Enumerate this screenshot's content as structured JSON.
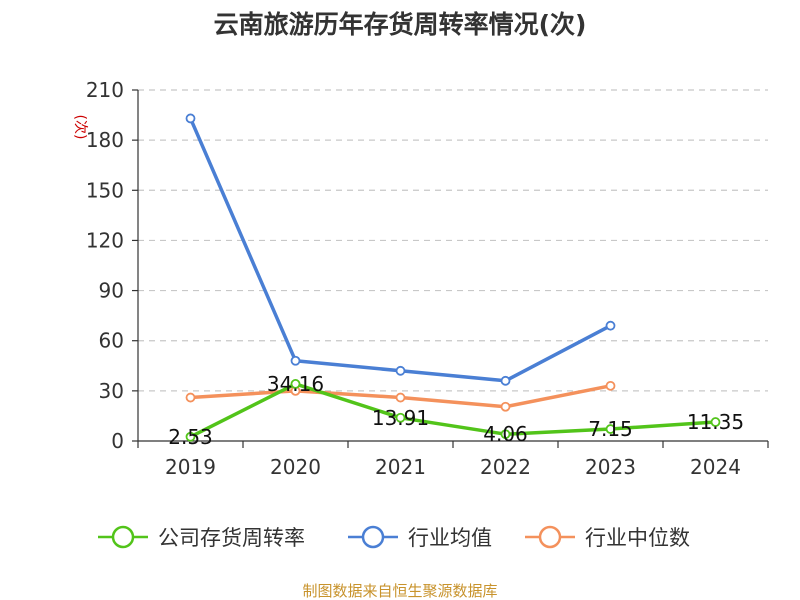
{
  "chart_data": {
    "type": "line",
    "title": "云南旅游历年存货周转率情况(次)",
    "ylabel": "(次)",
    "xlabel": "",
    "categories": [
      "2019",
      "2020",
      "2021",
      "2022",
      "2023",
      "2024"
    ],
    "ylim": [
      0,
      210
    ],
    "yticks": [
      0,
      30,
      60,
      90,
      120,
      150,
      180,
      210
    ],
    "grid": true,
    "legend_position": "bottom",
    "series": [
      {
        "name": "公司存货周转率",
        "color": "#52c41a",
        "values": [
          2.53,
          34.16,
          13.91,
          4.06,
          7.15,
          11.35
        ],
        "labels": [
          "2.53",
          "34.16",
          "13.91",
          "4.06",
          "7.15",
          "11.35"
        ]
      },
      {
        "name": "行业均值",
        "color": "#4a7fd4",
        "values": [
          193,
          48,
          42,
          36,
          69,
          null
        ]
      },
      {
        "name": "行业中位数",
        "color": "#f4915c",
        "values": [
          26,
          30,
          26,
          20.5,
          33,
          null
        ]
      }
    ],
    "source": "制图数据来自恒生聚源数据库"
  }
}
